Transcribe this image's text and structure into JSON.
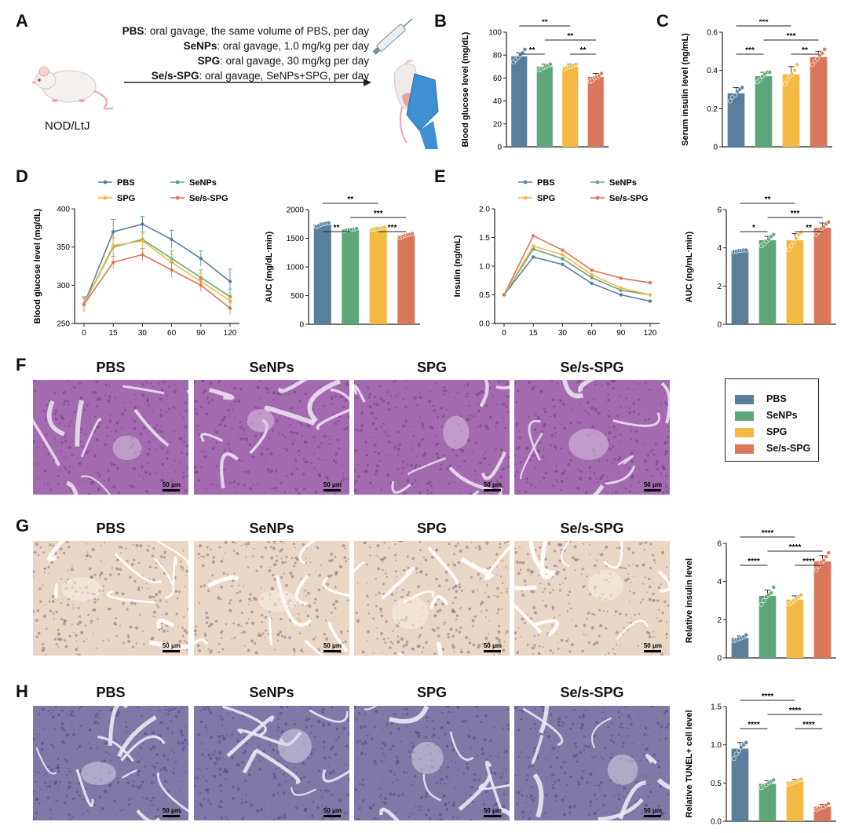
{
  "panel_labels": [
    "A",
    "B",
    "C",
    "D",
    "E",
    "F",
    "G",
    "H"
  ],
  "colors": {
    "PBS": "#5a7f9c",
    "SeNPs": "#5fa77a",
    "SPG": "#f4b942",
    "Se/s-SPG": "#d9775b"
  },
  "protocol": {
    "lines": [
      {
        "bold": "PBS",
        "text": ": oral gavage, the same volume of PBS, per day"
      },
      {
        "bold": "SeNPs",
        "text": ": oral gavage, 1.0 mg/kg per day"
      },
      {
        "bold": "SPG",
        "text": ": oral gavage, 30 mg/kg per day"
      },
      {
        "bold": "Se/s-SPG",
        "text": ": oral gavage, SeNPs+SPG, per day"
      }
    ],
    "mouse_label": "NOD/LtJ"
  },
  "groups": [
    "PBS",
    "SeNPs",
    "SPG",
    "Se/s-SPG"
  ],
  "image_rows": {
    "F": [
      "PBS",
      "SeNPs",
      "SPG",
      "Se/s-SPG"
    ],
    "G": [
      "PBS",
      "SeNPs",
      "SPG",
      "Se/s-SPG"
    ],
    "H": [
      "PBS",
      "SeNPs",
      "SPG",
      "Se/s-SPG"
    ]
  },
  "scalebar_label": "50 μm",
  "legend": [
    "PBS",
    "SeNPs",
    "SPG",
    "Se/s-SPG"
  ],
  "chart_data": [
    {
      "id": "B",
      "type": "bar",
      "categories": [
        "PBS",
        "SeNPs",
        "SPG",
        "Se/s-SPG"
      ],
      "values": [
        79,
        70,
        70,
        61
      ],
      "errors": [
        3,
        2,
        2,
        3
      ],
      "points": [
        [
          74,
          76,
          78,
          80,
          82,
          85
        ],
        [
          67,
          68,
          69,
          70,
          71,
          72
        ],
        [
          68,
          69,
          70,
          70,
          71,
          72
        ],
        [
          57,
          58,
          60,
          61,
          62,
          64
        ]
      ],
      "ylabel": "Blood glucose level (mg/dL)",
      "ylim": [
        0,
        100
      ],
      "yticks": [
        0,
        20,
        40,
        60,
        80,
        100
      ],
      "sig": [
        {
          "a": 0,
          "b": 1,
          "label": "**"
        },
        {
          "a": 0,
          "b": 2,
          "label": "**"
        },
        {
          "a": 1,
          "b": 3,
          "label": "**"
        },
        {
          "a": 2,
          "b": 3,
          "label": "**"
        }
      ]
    },
    {
      "id": "C",
      "type": "bar",
      "categories": [
        "PBS",
        "SeNPs",
        "SPG",
        "Se/s-SPG"
      ],
      "values": [
        0.28,
        0.37,
        0.38,
        0.47
      ],
      "errors": [
        0.03,
        0.02,
        0.04,
        0.03
      ],
      "points": [
        [
          0.24,
          0.26,
          0.27,
          0.29,
          0.3,
          0.31
        ],
        [
          0.34,
          0.35,
          0.37,
          0.38,
          0.39,
          0.39
        ],
        [
          0.33,
          0.35,
          0.37,
          0.38,
          0.4,
          0.43
        ],
        [
          0.43,
          0.45,
          0.46,
          0.48,
          0.49,
          0.51
        ]
      ],
      "ylabel": "Serum insulin level (ng/mL)",
      "ylim": [
        0,
        0.6
      ],
      "yticks": [
        0.0,
        0.2,
        0.4,
        0.6
      ],
      "sig": [
        {
          "a": 0,
          "b": 1,
          "label": "***"
        },
        {
          "a": 0,
          "b": 2,
          "label": "***"
        },
        {
          "a": 1,
          "b": 3,
          "label": "***"
        },
        {
          "a": 2,
          "b": 3,
          "label": "**"
        }
      ]
    },
    {
      "id": "D-line",
      "type": "line",
      "x": [
        0,
        15,
        30,
        60,
        90,
        120
      ],
      "xticks": [
        "0",
        "15",
        "30",
        "60",
        "90",
        "120"
      ],
      "series": [
        {
          "name": "PBS",
          "values": [
            275,
            370,
            380,
            360,
            335,
            305
          ],
          "errors": [
            10,
            16,
            10,
            12,
            10,
            16
          ]
        },
        {
          "name": "SeNPs",
          "values": [
            275,
            350,
            360,
            335,
            310,
            285
          ],
          "errors": [
            8,
            12,
            10,
            10,
            10,
            10
          ]
        },
        {
          "name": "SPG",
          "values": [
            275,
            352,
            358,
            330,
            305,
            280
          ],
          "errors": [
            8,
            10,
            10,
            10,
            10,
            8
          ]
        },
        {
          "name": "Se/s-SPG",
          "values": [
            275,
            330,
            340,
            320,
            300,
            270
          ],
          "errors": [
            8,
            8,
            8,
            10,
            8,
            8
          ]
        }
      ],
      "ylabel": "Blood glucose level (mg/dL)",
      "ylim": [
        250,
        400
      ],
      "yticks": [
        250,
        300,
        350,
        400
      ]
    },
    {
      "id": "D-auc",
      "type": "bar",
      "categories": [
        "PBS",
        "SeNPs",
        "SPG",
        "Se/s-SPG"
      ],
      "values": [
        1740,
        1650,
        1670,
        1550
      ],
      "errors": [
        30,
        20,
        20,
        25
      ],
      "points": [
        [
          1700,
          1720,
          1740,
          1750,
          1760,
          1770
        ],
        [
          1630,
          1640,
          1650,
          1650,
          1660,
          1670
        ],
        [
          1650,
          1660,
          1670,
          1670,
          1680,
          1690
        ],
        [
          1510,
          1530,
          1550,
          1560,
          1570,
          1580
        ]
      ],
      "ylabel": "AUC (mg/dL·min)",
      "ylim": [
        0,
        2000
      ],
      "yticks": [
        0,
        500,
        1000,
        1500,
        2000
      ],
      "sig": [
        {
          "a": 0,
          "b": 1,
          "label": "**"
        },
        {
          "a": 0,
          "b": 2,
          "label": "**"
        },
        {
          "a": 1,
          "b": 3,
          "label": "***"
        },
        {
          "a": 2,
          "b": 3,
          "label": "***"
        }
      ]
    },
    {
      "id": "E-line",
      "type": "line",
      "x": [
        0,
        15,
        30,
        60,
        90,
        120
      ],
      "xticks": [
        "0",
        "15",
        "30",
        "60",
        "90",
        "120"
      ],
      "series": [
        {
          "name": "PBS",
          "values": [
            0.5,
            1.16,
            1.03,
            0.7,
            0.5,
            0.39
          ]
        },
        {
          "name": "SeNPs",
          "values": [
            0.5,
            1.3,
            1.13,
            0.8,
            0.58,
            0.5
          ]
        },
        {
          "name": "SPG",
          "values": [
            0.5,
            1.35,
            1.2,
            0.85,
            0.62,
            0.5
          ]
        },
        {
          "name": "Se/s-SPG",
          "values": [
            0.5,
            1.53,
            1.28,
            0.93,
            0.79,
            0.71
          ]
        }
      ],
      "ylabel": "Insulin (ng/mL)",
      "ylim": [
        0,
        2.0
      ],
      "yticks": [
        "0.0",
        "0.5",
        "1.0",
        "1.5",
        "2.0"
      ]
    },
    {
      "id": "E-auc",
      "type": "bar",
      "categories": [
        "PBS",
        "SeNPs",
        "SPG",
        "Se/s-SPG"
      ],
      "values": [
        3.85,
        4.4,
        4.4,
        5.05
      ],
      "errors": [
        0.05,
        0.2,
        0.35,
        0.25
      ],
      "points": [
        [
          3.8,
          3.82,
          3.85,
          3.86,
          3.88,
          3.88
        ],
        [
          4.1,
          4.2,
          4.35,
          4.45,
          4.6,
          4.7
        ],
        [
          3.9,
          4.1,
          4.3,
          4.5,
          4.7,
          4.8
        ],
        [
          4.7,
          4.85,
          5.0,
          5.1,
          5.25,
          5.35
        ]
      ],
      "ylabel": "AUC (ng/mL·min)",
      "ylim": [
        0,
        6
      ],
      "yticks": [
        0,
        2,
        4,
        6
      ],
      "sig": [
        {
          "a": 0,
          "b": 1,
          "label": "*"
        },
        {
          "a": 0,
          "b": 2,
          "label": "**"
        },
        {
          "a": 1,
          "b": 3,
          "label": "***"
        },
        {
          "a": 2,
          "b": 3,
          "label": "**"
        }
      ]
    },
    {
      "id": "G",
      "type": "bar",
      "categories": [
        "PBS",
        "SeNPs",
        "SPG",
        "Se/s-SPG"
      ],
      "values": [
        1.05,
        3.25,
        3.05,
        5.05
      ],
      "errors": [
        0.1,
        0.3,
        0.2,
        0.3
      ],
      "points": [
        [
          0.9,
          0.95,
          1.0,
          1.05,
          1.1,
          1.2
        ],
        [
          2.8,
          3.0,
          3.2,
          3.3,
          3.4,
          3.7
        ],
        [
          2.8,
          2.9,
          3.0,
          3.1,
          3.2,
          3.3
        ],
        [
          4.6,
          4.8,
          5.0,
          5.1,
          5.3,
          5.5
        ]
      ],
      "ylabel": "Relative insulin level",
      "ylim": [
        0,
        6
      ],
      "yticks": [
        0,
        2,
        4,
        6
      ],
      "sig": [
        {
          "a": 0,
          "b": 1,
          "label": "****"
        },
        {
          "a": 0,
          "b": 2,
          "label": "****"
        },
        {
          "a": 1,
          "b": 3,
          "label": "****"
        },
        {
          "a": 2,
          "b": 3,
          "label": "****"
        }
      ]
    },
    {
      "id": "H",
      "type": "bar",
      "categories": [
        "PBS",
        "SeNPs",
        "SPG",
        "Se/s-SPG"
      ],
      "values": [
        0.95,
        0.49,
        0.52,
        0.19
      ],
      "errors": [
        0.08,
        0.04,
        0.03,
        0.03
      ],
      "points": [
        [
          0.82,
          0.88,
          0.92,
          0.97,
          1.0,
          1.03
        ],
        [
          0.44,
          0.46,
          0.48,
          0.5,
          0.52,
          0.54
        ],
        [
          0.48,
          0.5,
          0.51,
          0.52,
          0.54,
          0.55
        ],
        [
          0.15,
          0.17,
          0.18,
          0.19,
          0.21,
          0.23
        ]
      ],
      "ylabel": "Relative TUNEL+ cell level",
      "ylim": [
        0,
        1.5
      ],
      "yticks": [
        "0.0",
        "0.5",
        "1.0",
        "1.5"
      ],
      "sig": [
        {
          "a": 0,
          "b": 1,
          "label": "****"
        },
        {
          "a": 0,
          "b": 2,
          "label": "****"
        },
        {
          "a": 1,
          "b": 3,
          "label": "****"
        },
        {
          "a": 2,
          "b": 3,
          "label": "****"
        }
      ]
    }
  ]
}
